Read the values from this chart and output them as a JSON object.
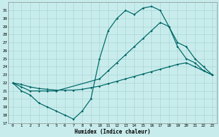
{
  "xlabel": "Humidex (Indice chaleur)",
  "bg_color": "#c8ecec",
  "grid_color": "#aad4d4",
  "line_color": "#006868",
  "xlim": [
    -0.5,
    23.5
  ],
  "ylim": [
    17,
    32
  ],
  "xticks": [
    0,
    1,
    2,
    3,
    4,
    5,
    6,
    7,
    8,
    9,
    10,
    11,
    12,
    13,
    14,
    15,
    16,
    17,
    18,
    19,
    20,
    21,
    22,
    23
  ],
  "yticks": [
    17,
    18,
    19,
    20,
    21,
    22,
    23,
    24,
    25,
    26,
    27,
    28,
    29,
    30,
    31
  ],
  "line1_x": [
    0,
    1,
    2,
    3,
    4,
    5,
    6,
    7,
    8,
    9,
    10,
    11,
    12,
    13,
    14,
    15,
    16,
    17,
    18,
    19,
    20,
    21,
    22,
    23
  ],
  "line1_y": [
    22,
    21,
    20.5,
    19.5,
    19,
    18.5,
    18,
    17.5,
    18.5,
    20,
    25,
    28.5,
    30,
    31,
    30.5,
    31.3,
    31.5,
    31,
    29,
    26.5,
    25,
    24.5,
    23.5,
    23
  ],
  "line2_x": [
    0,
    1,
    2,
    3,
    4,
    5,
    6,
    7,
    8,
    9,
    10,
    11,
    12,
    13,
    14,
    15,
    16,
    17,
    18,
    19,
    20,
    21,
    22,
    23
  ],
  "line2_y": [
    22,
    21.8,
    21.5,
    21.3,
    21.2,
    21.1,
    21.1,
    21.1,
    21.2,
    21.4,
    21.6,
    21.9,
    22.2,
    22.5,
    22.8,
    23.1,
    23.4,
    23.7,
    24.0,
    24.3,
    24.5,
    24.0,
    23.5,
    23.0
  ],
  "line3_x": [
    0,
    1,
    2,
    3,
    4,
    5,
    10,
    11,
    12,
    13,
    14,
    15,
    16,
    17,
    18,
    19,
    20,
    21,
    22,
    23
  ],
  "line3_y": [
    22,
    21.5,
    21.0,
    21.0,
    21.0,
    21.0,
    22.5,
    23.5,
    24.5,
    25.5,
    26.5,
    27.5,
    28.5,
    29.5,
    29.0,
    27.0,
    26.5,
    25.0,
    24.0,
    23.0
  ]
}
